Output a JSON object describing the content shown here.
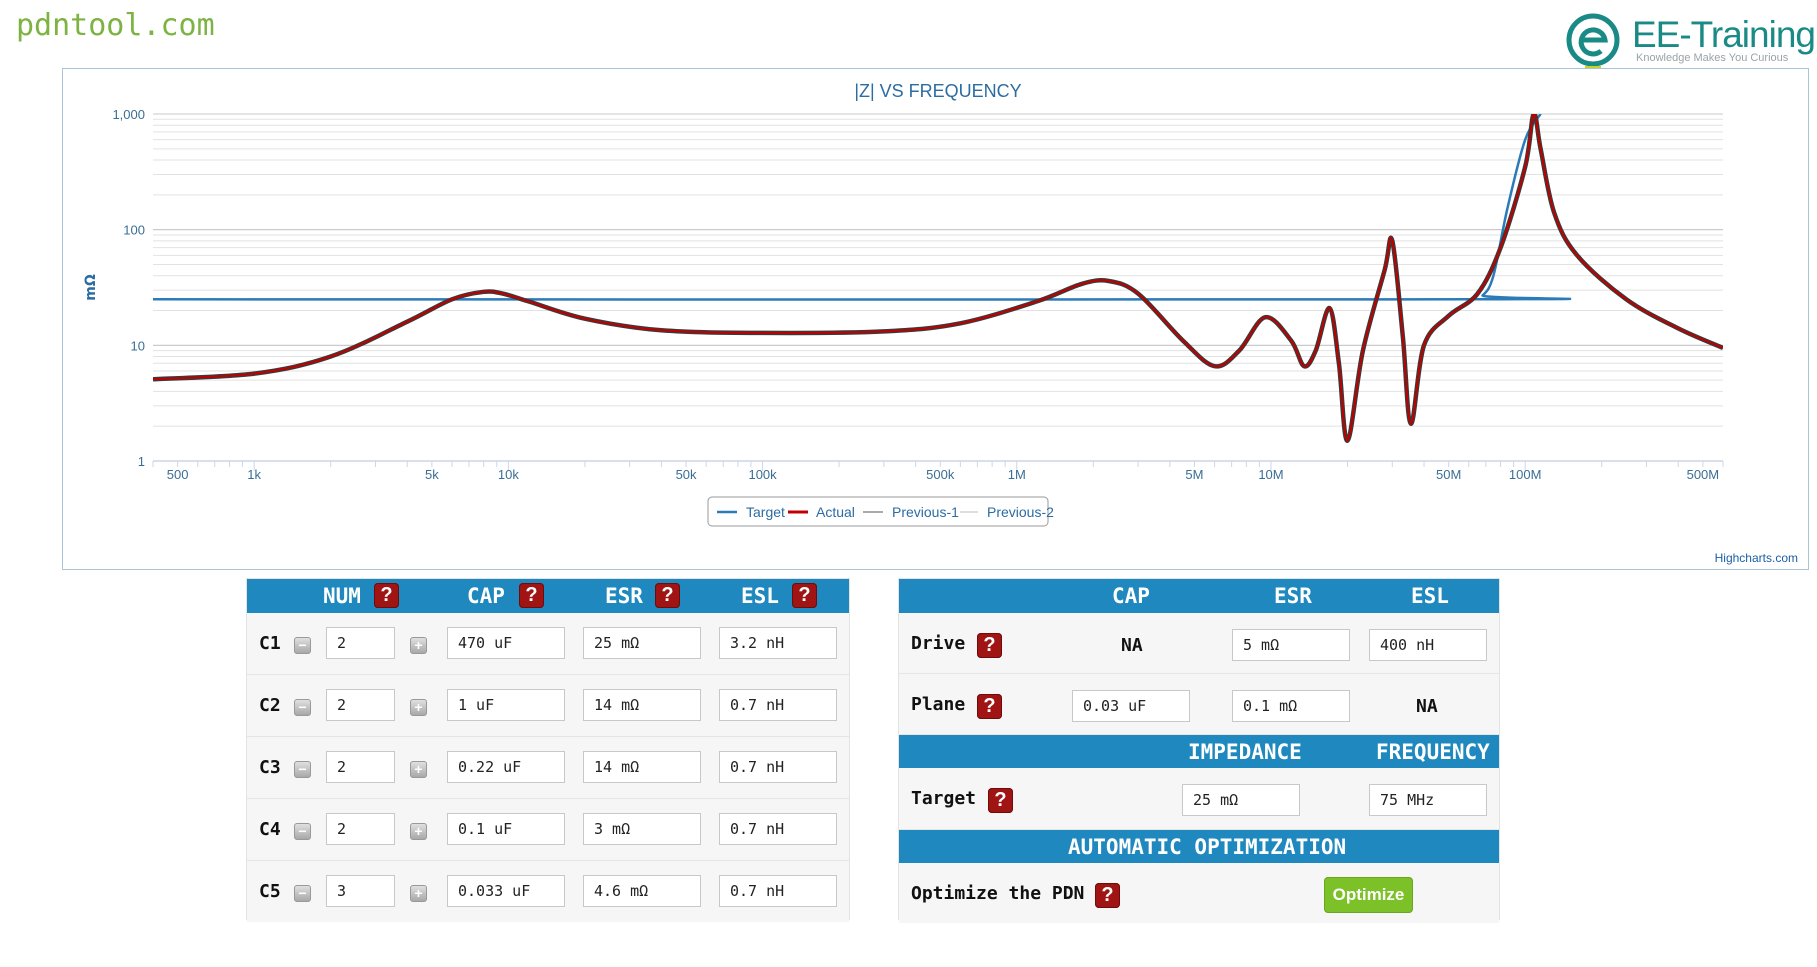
{
  "site": {
    "title": "pdntool.com"
  },
  "logo": {
    "name": "EE-Training",
    "tagline": "Knowledge Makes You Curious"
  },
  "chart_data": {
    "type": "line",
    "title": "|Z| VS FREQUENCY",
    "ylabel": "mΩ",
    "xlabel": "",
    "xscale": "log",
    "yscale": "log",
    "xlim": [
      400,
      600000000
    ],
    "ylim": [
      1,
      1000
    ],
    "x_ticks": [
      {
        "v": 500,
        "label": "500"
      },
      {
        "v": 1000,
        "label": "1k"
      },
      {
        "v": 5000,
        "label": "5k"
      },
      {
        "v": 10000,
        "label": "10k"
      },
      {
        "v": 50000,
        "label": "50k"
      },
      {
        "v": 100000,
        "label": "100k"
      },
      {
        "v": 500000,
        "label": "500k"
      },
      {
        "v": 1000000,
        "label": "1M"
      },
      {
        "v": 5000000,
        "label": "5M"
      },
      {
        "v": 10000000,
        "label": "10M"
      },
      {
        "v": 50000000,
        "label": "50M"
      },
      {
        "v": 100000000,
        "label": "100M"
      },
      {
        "v": 500000000,
        "label": "500M"
      }
    ],
    "y_ticks": [
      {
        "v": 1,
        "label": "1"
      },
      {
        "v": 10,
        "label": "10"
      },
      {
        "v": 100,
        "label": "100"
      },
      {
        "v": 1000,
        "label": "1,000"
      }
    ],
    "grid": true,
    "legend_position": "bottom-center",
    "legend": [
      "Target",
      "Actual",
      "Previous-1",
      "Previous-2"
    ],
    "series": [
      {
        "name": "Target",
        "color": "#2b7bb9",
        "points": [
          [
            400,
            25
          ],
          [
            60000000,
            25
          ],
          [
            68000000,
            27
          ],
          [
            75000000,
            40
          ],
          [
            85000000,
            150
          ],
          [
            100000000,
            600
          ],
          [
            115000000,
            1000
          ]
        ]
      },
      {
        "name": "Actual",
        "color": "#c00000",
        "points": [
          [
            400,
            5.1
          ],
          [
            1000,
            5.7
          ],
          [
            2000,
            8
          ],
          [
            4000,
            16
          ],
          [
            6000,
            25
          ],
          [
            8000,
            29
          ],
          [
            9500,
            28
          ],
          [
            12000,
            24
          ],
          [
            20000,
            17
          ],
          [
            40000,
            13.5
          ],
          [
            100000,
            12.8
          ],
          [
            300000,
            13.2
          ],
          [
            600000,
            15.5
          ],
          [
            1200000,
            24
          ],
          [
            1800000,
            34
          ],
          [
            2300000,
            36
          ],
          [
            3000000,
            28
          ],
          [
            4500000,
            11
          ],
          [
            6000000,
            6.6
          ],
          [
            7500000,
            9
          ],
          [
            9500000,
            17.5
          ],
          [
            12000000,
            11
          ],
          [
            13500000,
            6.6
          ],
          [
            15000000,
            9
          ],
          [
            17000000,
            21
          ],
          [
            18500000,
            7
          ],
          [
            20000000,
            1.5
          ],
          [
            23000000,
            9
          ],
          [
            28000000,
            45
          ],
          [
            30000000,
            80
          ],
          [
            33000000,
            12
          ],
          [
            35500000,
            2.1
          ],
          [
            40000000,
            10
          ],
          [
            50000000,
            18
          ],
          [
            65000000,
            28
          ],
          [
            80000000,
            70
          ],
          [
            100000000,
            350
          ],
          [
            108000000,
            1000
          ],
          [
            115000000,
            500
          ],
          [
            130000000,
            140
          ],
          [
            160000000,
            60
          ],
          [
            250000000,
            25
          ],
          [
            400000000,
            14
          ],
          [
            600000000,
            9.5
          ]
        ]
      },
      {
        "name": "Previous-1",
        "color": "#555555",
        "points": []
      },
      {
        "name": "Previous-2",
        "color": "#9e9e9e",
        "points": []
      }
    ],
    "credit": "Highcharts.com"
  },
  "cap_table": {
    "headers": {
      "num": "NUM",
      "cap": "CAP",
      "esr": "ESR",
      "esl": "ESL"
    },
    "help_glyph": "?",
    "minus": "−",
    "plus": "+",
    "rows": [
      {
        "label": "C1",
        "num": "2",
        "cap": "470 uF",
        "esr": "25 mΩ",
        "esl": "3.2 nH"
      },
      {
        "label": "C2",
        "num": "2",
        "cap": "1 uF",
        "esr": "14 mΩ",
        "esl": "0.7 nH"
      },
      {
        "label": "C3",
        "num": "2",
        "cap": "0.22 uF",
        "esr": "14 mΩ",
        "esl": "0.7 nH"
      },
      {
        "label": "C4",
        "num": "2",
        "cap": "0.1 uF",
        "esr": "3 mΩ",
        "esl": "0.7 nH"
      },
      {
        "label": "C5",
        "num": "3",
        "cap": "0.033 uF",
        "esr": "4.6 mΩ",
        "esl": "0.7 nH"
      }
    ]
  },
  "pdn_table": {
    "headers": {
      "cap": "CAP",
      "esr": "ESR",
      "esl": "ESL"
    },
    "drive": {
      "label": "Drive",
      "cap": "NA",
      "esr": "5 mΩ",
      "esl": "400 nH"
    },
    "plane": {
      "label": "Plane",
      "cap": "0.03 uF",
      "esr": "0.1 mΩ",
      "esl": "NA"
    },
    "target_headers": {
      "impedance": "IMPEDANCE",
      "frequency": "FREQUENCY"
    },
    "target": {
      "label": "Target",
      "impedance": "25 mΩ",
      "frequency": "75 MHz"
    },
    "optimization_header": "AUTOMATIC OPTIMIZATION",
    "optimize": {
      "label": "Optimize the PDN",
      "button": "Optimize"
    }
  }
}
